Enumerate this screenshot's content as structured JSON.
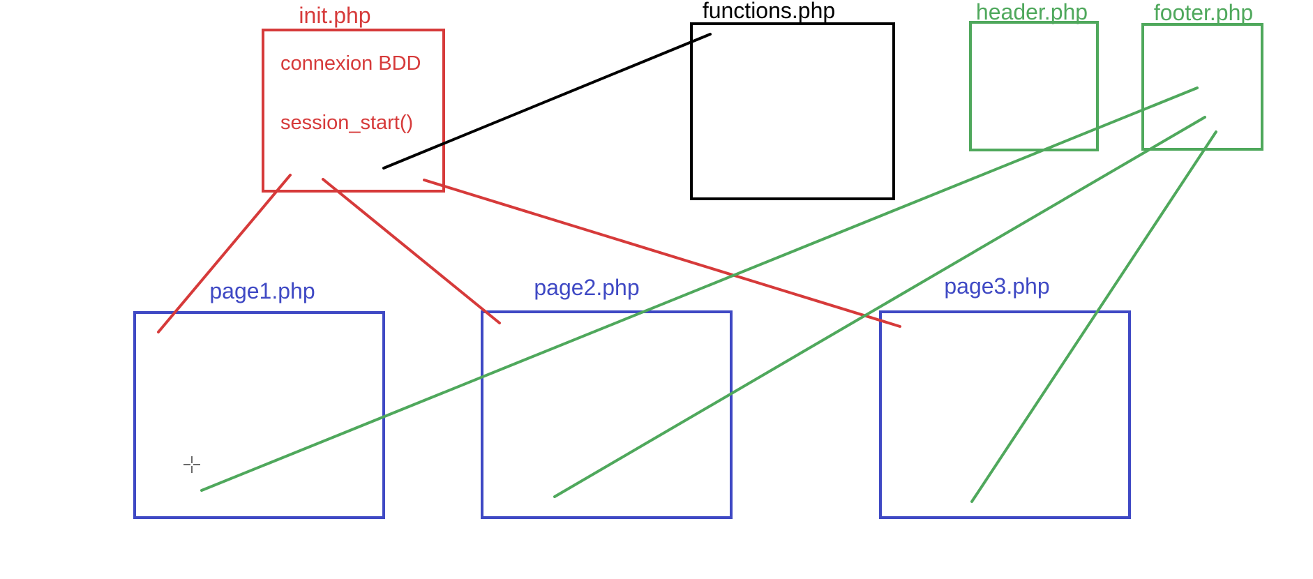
{
  "colors": {
    "red": "#d63a3a",
    "black": "#000000",
    "green": "#4fa85c",
    "blue": "#3f49c4",
    "background": "#ffffff"
  },
  "boxes": {
    "init": {
      "label": "init.php",
      "lines": [
        "connexion BDD",
        "session_start()"
      ]
    },
    "functions": {
      "label": "functions.php"
    },
    "header": {
      "label": "header.php"
    },
    "footer": {
      "label": "footer.php"
    },
    "page1": {
      "label": "page1.php"
    },
    "page2": {
      "label": "page2.php"
    },
    "page3": {
      "label": "page3.php"
    }
  },
  "cursor_icon": "crosshair-cursor-icon"
}
